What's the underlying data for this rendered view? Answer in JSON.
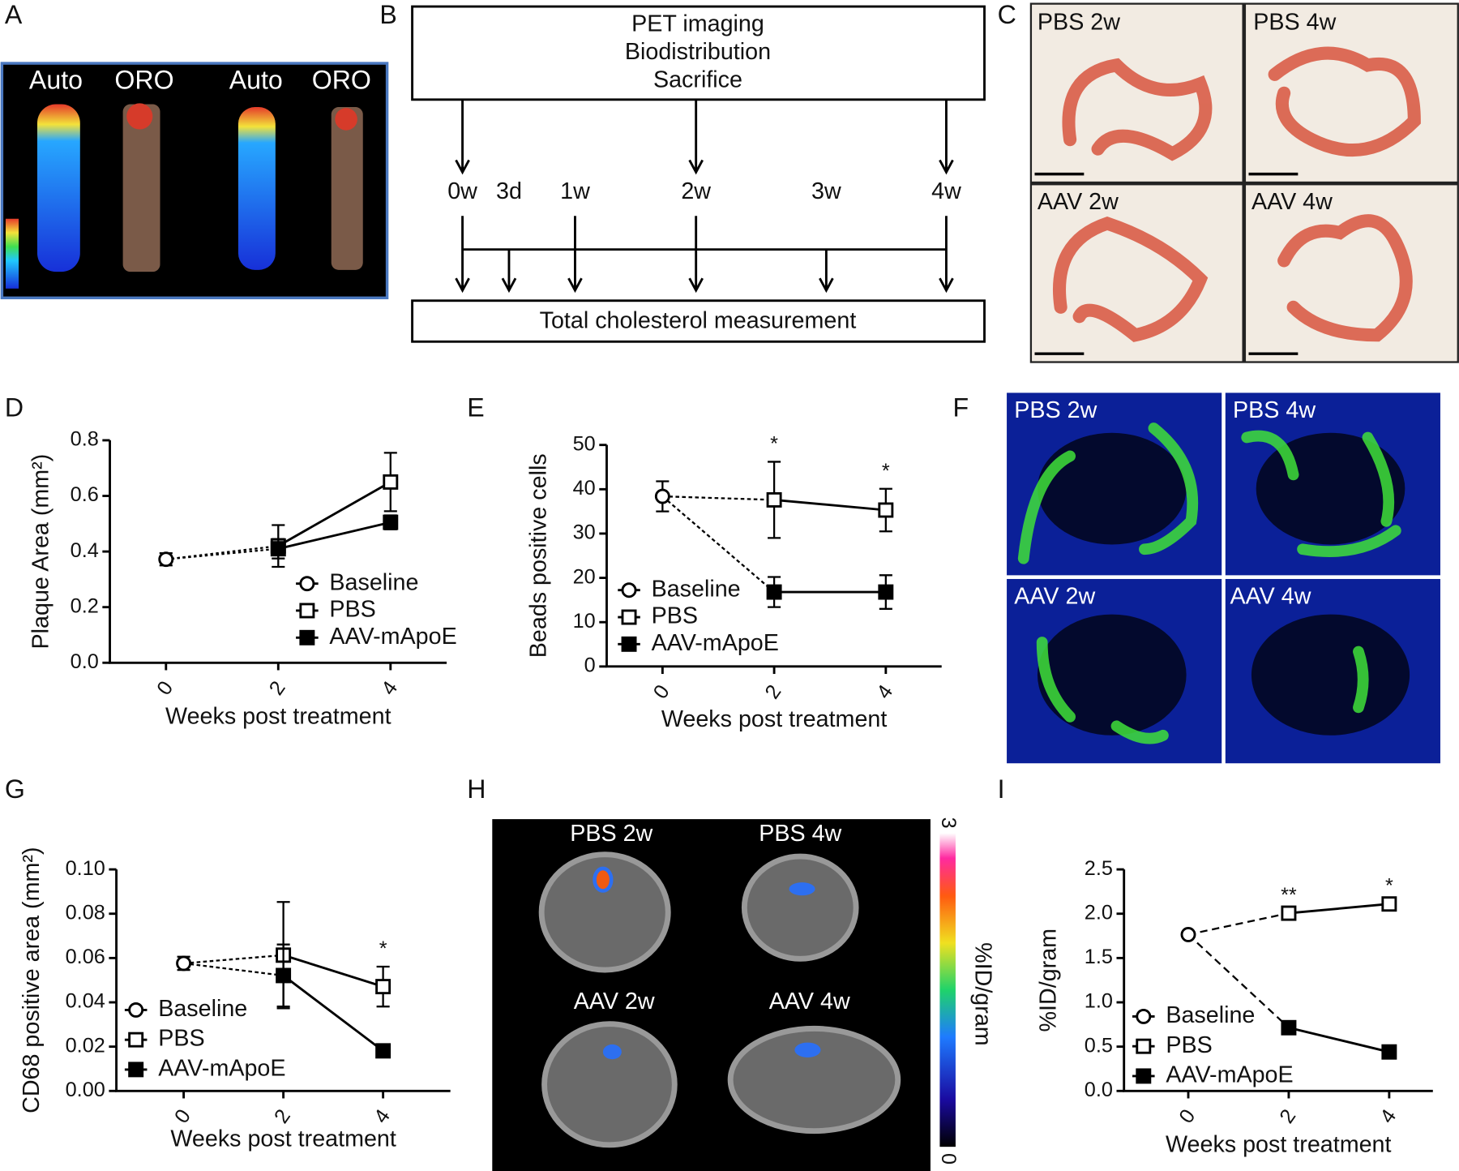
{
  "panel_labels": [
    "A",
    "B",
    "C",
    "D",
    "E",
    "F",
    "G",
    "H",
    "I"
  ],
  "panel_a": {
    "labels": [
      "Auto",
      "ORO",
      "Auto",
      "ORO"
    ]
  },
  "panel_b": {
    "top_box": [
      "PET imaging",
      "Biodistribution",
      "Sacrifice"
    ],
    "timepoints": [
      "0w",
      "3d",
      "1w",
      "2w",
      "3w",
      "4w"
    ],
    "bottom_box": "Total cholesterol measurement"
  },
  "panel_c": {
    "labels": [
      "PBS 2w",
      "PBS 4w",
      "AAV 2w",
      "AAV 4w"
    ]
  },
  "panel_f": {
    "labels": [
      "PBS 2w",
      "PBS 4w",
      "AAV 2w",
      "AAV 4w"
    ]
  },
  "panel_h": {
    "labels": [
      "PBS 2w",
      "PBS 4w",
      "AAV 2w",
      "AAV 4w"
    ],
    "colorbar": {
      "label": "%ID/gram",
      "max": 3,
      "min": 0
    }
  },
  "chart_data": [
    {
      "type": "line",
      "ylabel": "Plaque Area (mm²)",
      "xlabel": "Weeks post treatment",
      "x": [
        0,
        2,
        4
      ],
      "xlim": [
        -1,
        5
      ],
      "xticks": [
        0,
        2,
        4
      ],
      "ylim": [
        0,
        0.8
      ],
      "yticks": [
        {
          "value": 0,
          "label": "0.0"
        },
        0.2,
        0.4,
        0.6,
        0.8
      ],
      "series": [
        {
          "name": "Baseline",
          "marker": "circle",
          "values": [
            0.372,
            null,
            null
          ],
          "error": [
            0.022,
            null,
            null
          ]
        },
        {
          "name": "PBS",
          "marker": "square",
          "values": [
            null,
            0.42,
            0.65
          ],
          "error": [
            null,
            0.075,
            0.105
          ]
        },
        {
          "name": "AAV-mApoE",
          "marker": "square-filled",
          "values": [
            null,
            0.41,
            0.505
          ],
          "error": [
            null,
            0.035,
            0.025
          ]
        }
      ]
    },
    {
      "type": "line",
      "ylabel": "Beads positive cells",
      "xlabel": "Weeks post treatment",
      "x": [
        0,
        2,
        4
      ],
      "xlim": [
        -1,
        5
      ],
      "xticks": [
        0,
        2,
        4
      ],
      "ylim": [
        0,
        50
      ],
      "yticks": [
        0,
        10,
        20,
        30,
        40,
        50
      ],
      "annotations": [
        null,
        "*",
        "*"
      ],
      "series": [
        {
          "name": "Baseline",
          "marker": "circle",
          "values": [
            38.4,
            null,
            null
          ],
          "error": [
            3.4,
            null,
            null
          ]
        },
        {
          "name": "PBS",
          "marker": "square",
          "values": [
            null,
            37.6,
            35.3
          ],
          "error": [
            null,
            8.6,
            4.8
          ]
        },
        {
          "name": "AAV-mApoE",
          "marker": "square-filled",
          "values": [
            null,
            16.8,
            16.8
          ],
          "error": [
            null,
            3.4,
            3.8
          ]
        }
      ]
    },
    {
      "type": "line",
      "ylabel": "CD68 positive area (mm²)",
      "xlabel": "Weeks post treatment",
      "x": [
        0,
        2,
        4
      ],
      "xlim": [
        -1.35,
        5.35
      ],
      "xticks": [
        0,
        2,
        4
      ],
      "ylim": [
        0,
        0.1
      ],
      "yticks": [
        {
          "value": 0,
          "label": "0.00"
        },
        0.02,
        0.04,
        0.06,
        0.08,
        {
          "value": 0.1,
          "label": "0.10"
        }
      ],
      "annotations": [
        null,
        null,
        "*"
      ],
      "series": [
        {
          "name": "Baseline",
          "marker": "circle",
          "values": [
            0.0576,
            null,
            null
          ],
          "error": [
            0.003,
            null,
            null
          ]
        },
        {
          "name": "PBS",
          "marker": "square",
          "values": [
            null,
            0.0613,
            0.0471
          ],
          "error": [
            null,
            0.024,
            0.009
          ]
        },
        {
          "name": "AAV-mApoE",
          "marker": "square-filled",
          "values": [
            null,
            0.0521,
            0.0181
          ],
          "error": [
            null,
            0.014,
            null
          ]
        }
      ]
    },
    {
      "type": "line",
      "ylabel": "%ID/gram",
      "xlabel": "Weeks post treatment",
      "x": [
        0,
        2,
        4
      ],
      "xlim": [
        -1.28,
        4.87
      ],
      "xticks": [
        0,
        2,
        4
      ],
      "ylim": [
        0,
        2.5
      ],
      "yticks": [
        {
          "value": 0,
          "label": "0.0"
        },
        0.5,
        {
          "value": 1,
          "label": "1.0"
        },
        1.5,
        {
          "value": 2,
          "label": "2.0"
        },
        2.5
      ],
      "annotations": [
        null,
        "**",
        "*"
      ],
      "series": [
        {
          "name": "Baseline",
          "marker": "circle",
          "values": [
            1.765,
            null,
            null
          ]
        },
        {
          "name": "PBS",
          "marker": "square",
          "values": [
            null,
            2.006,
            2.11
          ]
        },
        {
          "name": "AAV-mApoE",
          "marker": "square-filled",
          "values": [
            null,
            0.714,
            0.44
          ]
        }
      ]
    }
  ]
}
